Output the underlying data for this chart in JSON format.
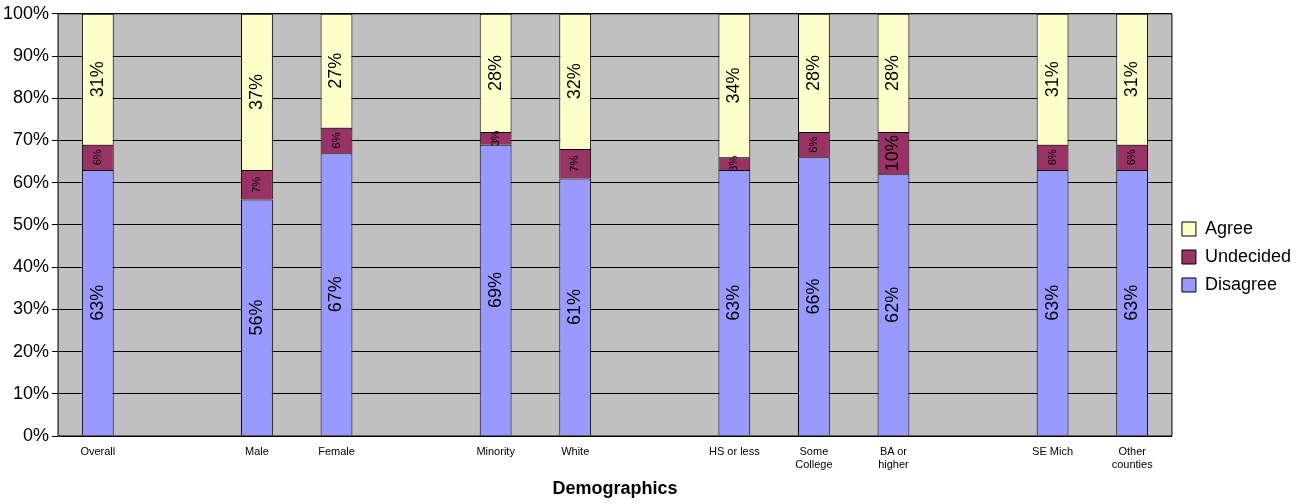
{
  "chart_data": {
    "type": "bar",
    "stacked": true,
    "xlabel": "Demographics",
    "categories": [
      "Overall",
      null,
      "Male",
      "Female",
      null,
      "Minority",
      "White",
      null,
      "HS or less",
      "Some\nCollege",
      "BA or\nhigher",
      null,
      "SE Mich",
      "Other\ncounties"
    ],
    "series": [
      {
        "name": "Disagree",
        "color": "#9999ff",
        "values": [
          63,
          null,
          56,
          67,
          null,
          69,
          61,
          null,
          63,
          66,
          62,
          null,
          63,
          63
        ],
        "value_labels": [
          "63%",
          null,
          "56%",
          "67%",
          null,
          "69%",
          "61%",
          null,
          "63%",
          "66%",
          "62%",
          null,
          "63%",
          "63%"
        ]
      },
      {
        "name": "Undecided",
        "color": "#993366",
        "values": [
          6,
          null,
          7,
          6,
          null,
          3,
          7,
          null,
          3,
          6,
          10,
          null,
          6,
          6
        ],
        "value_labels": [
          "6%",
          null,
          "7%",
          "6%",
          null,
          "3%",
          "7%",
          null,
          "3%",
          "6%",
          "10%",
          null,
          "6%",
          "6%"
        ]
      },
      {
        "name": "Agree",
        "color": "#ffffcc",
        "values": [
          31,
          null,
          37,
          27,
          null,
          28,
          32,
          null,
          34,
          28,
          28,
          null,
          31,
          31
        ],
        "value_labels": [
          "31%",
          null,
          "37%",
          "27%",
          null,
          "28%",
          "32%",
          null,
          "34%",
          "28%",
          "28%",
          null,
          "31%",
          "31%"
        ]
      }
    ],
    "ylim": [
      0,
      100
    ],
    "yticks": [
      {
        "value": 0,
        "label": "0%"
      },
      {
        "value": 10,
        "label": "10%"
      },
      {
        "value": 20,
        "label": "20%"
      },
      {
        "value": 30,
        "label": "30%"
      },
      {
        "value": 40,
        "label": "40%"
      },
      {
        "value": 50,
        "label": "50%"
      },
      {
        "value": 60,
        "label": "60%"
      },
      {
        "value": 70,
        "label": "70%"
      },
      {
        "value": 80,
        "label": "80%"
      },
      {
        "value": 90,
        "label": "90%"
      },
      {
        "value": 100,
        "label": "100%"
      }
    ],
    "grid": "y",
    "legend": "right"
  }
}
